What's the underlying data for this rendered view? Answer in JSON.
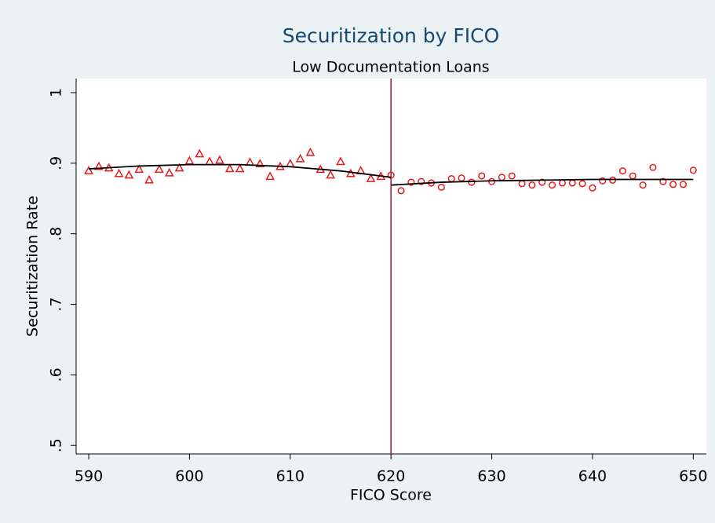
{
  "chart_data": {
    "type": "scatter",
    "title": "Securitization by FICO",
    "subtitle": "Low Documentation Loans",
    "x_label": "FICO Score",
    "y_label": "Securitization Rate",
    "xlim": [
      588.75,
      651.3
    ],
    "ylim": [
      0.488,
      1.02
    ],
    "xticks": [
      590,
      600,
      610,
      620,
      630,
      640,
      650
    ],
    "yticks": [
      {
        "value": 0.5,
        "label": ".5"
      },
      {
        "value": 0.6,
        "label": ".6"
      },
      {
        "value": 0.7,
        "label": ".7"
      },
      {
        "value": 0.8,
        "label": ".8"
      },
      {
        "value": 0.9,
        "label": ".9"
      },
      1
    ],
    "grid": false,
    "reference_lines": [
      {
        "x": 620,
        "color": "#a0233f"
      }
    ],
    "series": [
      {
        "marker": "triangle",
        "color": "#e8191b",
        "x": [
          590,
          591,
          592,
          593,
          594,
          595,
          596,
          597,
          598,
          599,
          600,
          601,
          602,
          603,
          604,
          605,
          606,
          607,
          608,
          609,
          610,
          611,
          612,
          613,
          614,
          615,
          616,
          617,
          618,
          619
        ],
        "values": [
          0.889,
          0.895,
          0.893,
          0.885,
          0.883,
          0.891,
          0.876,
          0.891,
          0.886,
          0.893,
          0.903,
          0.913,
          0.902,
          0.904,
          0.892,
          0.892,
          0.901,
          0.899,
          0.881,
          0.895,
          0.899,
          0.906,
          0.915,
          0.891,
          0.883,
          0.902,
          0.885,
          0.889,
          0.878,
          0.881
        ]
      },
      {
        "marker": "circle",
        "color": "#e8191b",
        "x": [
          620,
          621,
          622,
          623,
          624,
          625,
          626,
          627,
          628,
          629,
          630,
          631,
          632,
          633,
          634,
          635,
          636,
          637,
          638,
          639,
          640,
          641,
          642,
          643,
          644,
          645,
          646,
          647,
          648,
          649,
          650
        ],
        "values": [
          0.883,
          0.861,
          0.873,
          0.874,
          0.872,
          0.866,
          0.878,
          0.879,
          0.873,
          0.882,
          0.874,
          0.88,
          0.882,
          0.871,
          0.869,
          0.873,
          0.869,
          0.872,
          0.872,
          0.871,
          0.865,
          0.875,
          0.876,
          0.889,
          0.882,
          0.869,
          0.894,
          0.874,
          0.87,
          0.87,
          0.89
        ]
      },
      {
        "marker": "line",
        "color": "#000000",
        "x": [
          590,
          595,
          600,
          605,
          610,
          615,
          620
        ],
        "values": [
          0.892,
          0.896,
          0.898,
          0.898,
          0.895,
          0.889,
          0.88
        ]
      },
      {
        "marker": "line",
        "color": "#000000",
        "x": [
          620,
          625,
          630,
          635,
          640,
          645,
          650
        ],
        "values": [
          0.869,
          0.873,
          0.875,
          0.876,
          0.877,
          0.877,
          0.877
        ]
      }
    ]
  }
}
